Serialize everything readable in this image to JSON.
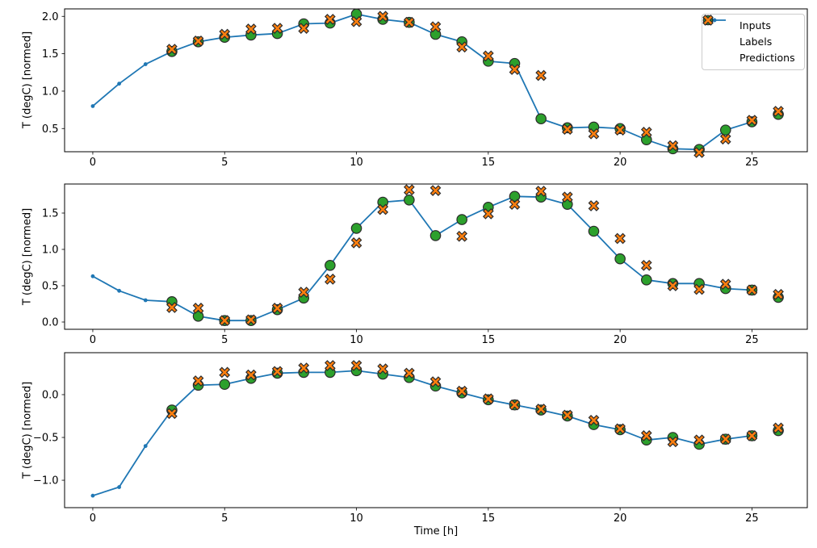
{
  "figure": {
    "xlabel": "Time [h]",
    "x_ticks": [
      0,
      5,
      10,
      15,
      20,
      25
    ],
    "xlim": [
      -1.07,
      27.1
    ],
    "colors": {
      "inputs": "#1f77b4",
      "labels": "#2ca02c",
      "predictions": "#ff7f0e",
      "marker_edge": "#2b2b2b",
      "axis": "#000000",
      "legend_border": "#cccccc"
    },
    "legend": {
      "items": [
        {
          "label": "Inputs",
          "marker": "line-dot-icon"
        },
        {
          "label": "Labels",
          "marker": "circle-icon"
        },
        {
          "label": "Predictions",
          "marker": "x-icon"
        }
      ]
    }
  },
  "chart_data": [
    {
      "type": "line",
      "title": "",
      "ylabel": "T (degC) [normed]",
      "ylim": [
        0.19,
        2.1
      ],
      "y_ticks": [
        0.5,
        1.0,
        1.5,
        2.0
      ],
      "xlim": [
        -1.07,
        27.1
      ],
      "x_ticks": [
        0,
        5,
        10,
        15,
        20,
        25
      ],
      "legend_position": "upper right",
      "grid": false,
      "series": [
        {
          "name": "Inputs",
          "style": "line-dot",
          "x": [
            0,
            1,
            2,
            3,
            4,
            5,
            6,
            7,
            8,
            9,
            10,
            11,
            12,
            13,
            14,
            15,
            16,
            17,
            18,
            19,
            20,
            21,
            22,
            23,
            24,
            25
          ],
          "y": [
            0.8,
            1.1,
            1.36,
            1.53,
            1.66,
            1.72,
            1.75,
            1.77,
            1.9,
            1.91,
            2.03,
            1.96,
            1.92,
            1.76,
            1.66,
            1.4,
            1.37,
            0.63,
            0.51,
            0.52,
            0.5,
            0.35,
            0.23,
            0.22,
            0.48,
            0.59
          ]
        },
        {
          "name": "Labels",
          "style": "scatter-circle",
          "x": [
            3,
            4,
            5,
            6,
            7,
            8,
            9,
            10,
            11,
            12,
            13,
            14,
            15,
            16,
            17,
            18,
            19,
            20,
            21,
            22,
            23,
            24,
            25,
            26
          ],
          "y": [
            1.53,
            1.66,
            1.72,
            1.75,
            1.77,
            1.9,
            1.91,
            2.03,
            1.96,
            1.92,
            1.76,
            1.66,
            1.4,
            1.37,
            0.63,
            0.51,
            0.52,
            0.5,
            0.35,
            0.23,
            0.22,
            0.48,
            0.59,
            0.69
          ]
        },
        {
          "name": "Predictions",
          "style": "scatter-x",
          "x": [
            3,
            4,
            5,
            6,
            7,
            8,
            9,
            10,
            11,
            12,
            13,
            14,
            15,
            16,
            17,
            18,
            19,
            20,
            21,
            22,
            23,
            24,
            25,
            26
          ],
          "y": [
            1.56,
            1.67,
            1.76,
            1.83,
            1.84,
            1.84,
            1.96,
            1.93,
            2.0,
            1.92,
            1.86,
            1.59,
            1.47,
            1.29,
            1.21,
            0.49,
            0.43,
            0.48,
            0.45,
            0.27,
            0.18,
            0.36,
            0.61,
            0.73
          ]
        }
      ]
    },
    {
      "type": "line",
      "title": "",
      "ylabel": "T (degC) [normed]",
      "ylim": [
        -0.1,
        1.9
      ],
      "y_ticks": [
        0.0,
        0.5,
        1.0,
        1.5
      ],
      "xlim": [
        -1.07,
        27.1
      ],
      "x_ticks": [
        0,
        5,
        10,
        15,
        20,
        25
      ],
      "grid": false,
      "series": [
        {
          "name": "Inputs",
          "style": "line-dot",
          "x": [
            0,
            1,
            2,
            3,
            4,
            5,
            6,
            7,
            8,
            9,
            10,
            11,
            12,
            13,
            14,
            15,
            16,
            17,
            18,
            19,
            20,
            21,
            22,
            23,
            24,
            25
          ],
          "y": [
            0.63,
            0.43,
            0.3,
            0.28,
            0.08,
            0.02,
            0.02,
            0.17,
            0.33,
            0.78,
            1.29,
            1.65,
            1.68,
            1.19,
            1.41,
            1.58,
            1.73,
            1.72,
            1.62,
            1.25,
            0.87,
            0.58,
            0.53,
            0.53,
            0.46,
            0.44
          ]
        },
        {
          "name": "Labels",
          "style": "scatter-circle",
          "x": [
            3,
            4,
            5,
            6,
            7,
            8,
            9,
            10,
            11,
            12,
            13,
            14,
            15,
            16,
            17,
            18,
            19,
            20,
            21,
            22,
            23,
            24,
            25,
            26
          ],
          "y": [
            0.28,
            0.08,
            0.02,
            0.02,
            0.17,
            0.33,
            0.78,
            1.29,
            1.65,
            1.68,
            1.19,
            1.41,
            1.58,
            1.73,
            1.72,
            1.62,
            1.25,
            0.87,
            0.58,
            0.53,
            0.53,
            0.46,
            0.44,
            0.34
          ]
        },
        {
          "name": "Predictions",
          "style": "scatter-x",
          "x": [
            3,
            4,
            5,
            6,
            7,
            8,
            9,
            10,
            11,
            12,
            13,
            14,
            15,
            16,
            17,
            18,
            19,
            20,
            21,
            22,
            23,
            24,
            25,
            26
          ],
          "y": [
            0.2,
            0.19,
            0.02,
            0.03,
            0.19,
            0.41,
            0.59,
            1.09,
            1.55,
            1.82,
            1.81,
            1.18,
            1.49,
            1.62,
            1.8,
            1.72,
            1.6,
            1.15,
            0.78,
            0.5,
            0.45,
            0.52,
            0.44,
            0.38
          ]
        }
      ]
    },
    {
      "type": "line",
      "title": "",
      "ylabel": "T (degC) [normed]",
      "xlabel": "Time [h]",
      "ylim": [
        -1.32,
        0.49
      ],
      "y_ticks": [
        -1.0,
        -0.5,
        0.0
      ],
      "xlim": [
        -1.07,
        27.1
      ],
      "x_ticks": [
        0,
        5,
        10,
        15,
        20,
        25
      ],
      "grid": false,
      "series": [
        {
          "name": "Inputs",
          "style": "line-dot",
          "x": [
            0,
            1,
            2,
            3,
            4,
            5,
            6,
            7,
            8,
            9,
            10,
            11,
            12,
            13,
            14,
            15,
            16,
            17,
            18,
            19,
            20,
            21,
            22,
            23,
            24,
            25
          ],
          "y": [
            -1.18,
            -1.08,
            -0.6,
            -0.18,
            0.11,
            0.12,
            0.19,
            0.25,
            0.26,
            0.26,
            0.28,
            0.24,
            0.2,
            0.1,
            0.02,
            -0.06,
            -0.12,
            -0.18,
            -0.25,
            -0.35,
            -0.41,
            -0.53,
            -0.5,
            -0.58,
            -0.52,
            -0.48
          ]
        },
        {
          "name": "Labels",
          "style": "scatter-circle",
          "x": [
            3,
            4,
            5,
            6,
            7,
            8,
            9,
            10,
            11,
            12,
            13,
            14,
            15,
            16,
            17,
            18,
            19,
            20,
            21,
            22,
            23,
            24,
            25,
            26
          ],
          "y": [
            -0.18,
            0.11,
            0.12,
            0.19,
            0.25,
            0.26,
            0.26,
            0.28,
            0.24,
            0.2,
            0.1,
            0.02,
            -0.06,
            -0.12,
            -0.18,
            -0.25,
            -0.35,
            -0.41,
            -0.53,
            -0.5,
            -0.58,
            -0.52,
            -0.48,
            -0.42
          ]
        },
        {
          "name": "Predictions",
          "style": "scatter-x",
          "x": [
            3,
            4,
            5,
            6,
            7,
            8,
            9,
            10,
            11,
            12,
            13,
            14,
            15,
            16,
            17,
            18,
            19,
            20,
            21,
            22,
            23,
            24,
            25,
            26
          ],
          "y": [
            -0.22,
            0.16,
            0.26,
            0.23,
            0.27,
            0.31,
            0.34,
            0.34,
            0.3,
            0.25,
            0.15,
            0.04,
            -0.05,
            -0.12,
            -0.17,
            -0.24,
            -0.3,
            -0.4,
            -0.48,
            -0.55,
            -0.53,
            -0.52,
            -0.48,
            -0.39
          ]
        }
      ]
    }
  ]
}
